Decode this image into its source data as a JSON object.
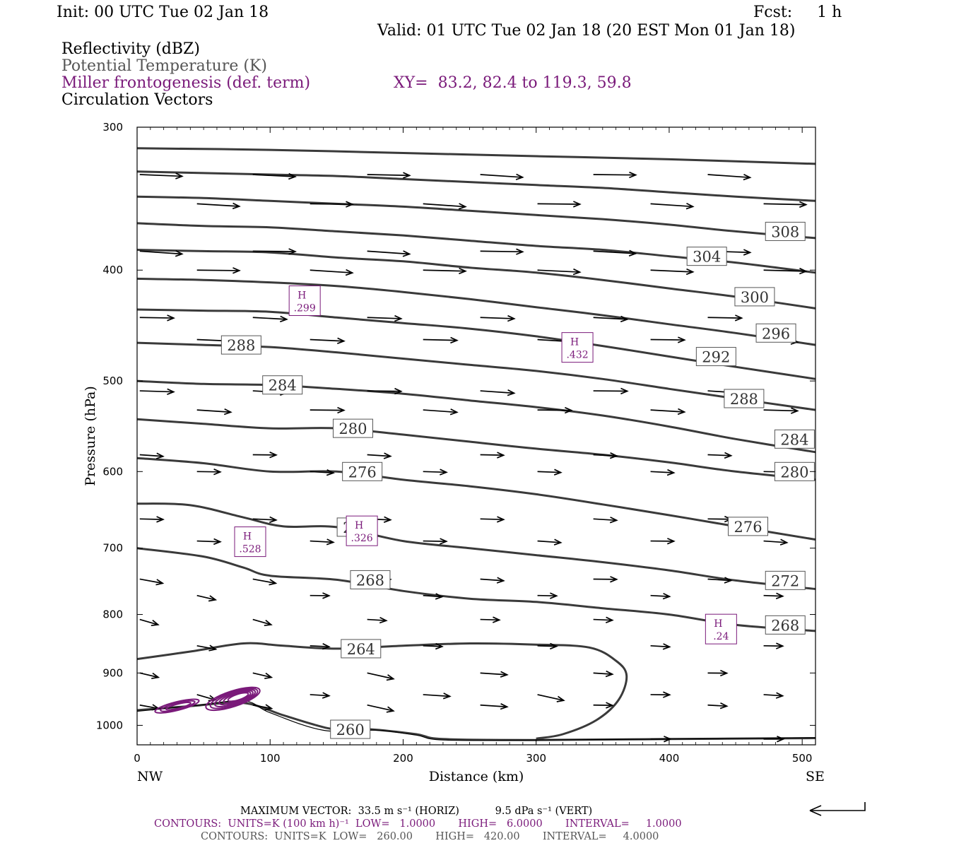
{
  "header": {
    "init": "Init: 00 UTC Tue 02 Jan 18",
    "fcst": "Fcst:     1 h",
    "valid": "Valid: 01 UTC Tue 02 Jan 18 (20 EST Mon 01 Jan 18)",
    "field1": "Reflectivity (dBZ)",
    "field2": "Potential Temperature (K)",
    "field3": "Miller frontogenesis (def. term)",
    "xy": "XY=  83.2, 82.4 to 119.3, 59.8",
    "field4": "Circulation Vectors"
  },
  "footer": {
    "line1": "MAXIMUM VECTOR:  33.5 m s⁻¹ (HORIZ)           9.5 dPa s⁻¹ (VERT)",
    "line2": "CONTOURS:  UNITS=K (100 km h)⁻¹  LOW=   1.0000       HIGH=   6.0000       INTERVAL=     1.0000",
    "line3": "CONTOURS:  UNITS=K  LOW=   260.00       HIGH=   420.00       INTERVAL=     4.0000"
  },
  "colors": {
    "theta": "#3a3a3a",
    "frontogenesis": "#7a1a7a",
    "vectors": "#000000"
  },
  "chart_data": {
    "type": "line",
    "title": "",
    "xlabel": "Distance (km)",
    "ylabel": "Pressure (hPa)",
    "xlim": [
      0,
      510
    ],
    "ylim": [
      1040,
      300
    ],
    "y_scale": "log-pressure (inverted)",
    "x_ticks": [
      0,
      100,
      200,
      300,
      400,
      500
    ],
    "y_ticks": [
      300,
      400,
      500,
      600,
      700,
      800,
      900,
      1000
    ],
    "x_end_labels": {
      "left": "NW",
      "right": "SE"
    },
    "grid": false,
    "isotherms": [
      {
        "theta": 260,
        "label": "260",
        "points": [
          [
            0,
            970
          ],
          [
            40,
            962
          ],
          [
            80,
            956
          ],
          [
            110,
            980
          ],
          [
            135,
            1000
          ],
          [
            150,
            1008
          ],
          [
            175,
            1008
          ],
          [
            210,
            1018
          ],
          [
            230,
            1028
          ],
          [
            300,
            1030
          ],
          [
            400,
            1028
          ],
          [
            510,
            1026
          ]
        ],
        "labels_at": [
          [
            147,
            1008
          ]
        ]
      },
      {
        "theta": 264,
        "label": "264",
        "points": [
          [
            0,
            875
          ],
          [
            40,
            862
          ],
          [
            80,
            848
          ],
          [
            110,
            852
          ],
          [
            150,
            857
          ],
          [
            200,
            852
          ],
          [
            250,
            848
          ],
          [
            300,
            850
          ],
          [
            340,
            855
          ],
          [
            360,
            878
          ],
          [
            368,
            905
          ],
          [
            362,
            950
          ],
          [
            345,
            990
          ],
          [
            320,
            1018
          ],
          [
            300,
            1027
          ]
        ],
        "labels_at": [
          [
            155,
            857
          ]
        ]
      },
      {
        "theta": 268,
        "label": "268",
        "points": [
          [
            0,
            700
          ],
          [
            50,
            712
          ],
          [
            80,
            728
          ],
          [
            100,
            740
          ],
          [
            150,
            746
          ],
          [
            200,
            763
          ],
          [
            250,
            775
          ],
          [
            300,
            780
          ],
          [
            350,
            790
          ],
          [
            400,
            800
          ],
          [
            450,
            817
          ],
          [
            510,
            827
          ]
        ],
        "labels_at": [
          [
            162,
            746
          ],
          [
            474,
            817
          ]
        ]
      },
      {
        "theta": 272,
        "label": "272",
        "points": [
          [
            0,
            640
          ],
          [
            40,
            642
          ],
          [
            80,
            658
          ],
          [
            110,
            670
          ],
          [
            150,
            671
          ],
          [
            200,
            690
          ],
          [
            250,
            700
          ],
          [
            300,
            710
          ],
          [
            350,
            720
          ],
          [
            400,
            732
          ],
          [
            450,
            747
          ],
          [
            510,
            760
          ]
        ],
        "labels_at": [
          [
            152,
            671
          ],
          [
            474,
            747
          ]
        ]
      },
      {
        "theta": 276,
        "label": "276",
        "points": [
          [
            0,
            584
          ],
          [
            50,
            590
          ],
          [
            100,
            600
          ],
          [
            150,
            600
          ],
          [
            200,
            610
          ],
          [
            250,
            618
          ],
          [
            300,
            628
          ],
          [
            350,
            641
          ],
          [
            400,
            655
          ],
          [
            450,
            670
          ],
          [
            510,
            688
          ]
        ],
        "labels_at": [
          [
            156,
            600
          ],
          [
            446,
            670
          ]
        ]
      },
      {
        "theta": 280,
        "label": "280",
        "points": [
          [
            0,
            540
          ],
          [
            50,
            545
          ],
          [
            100,
            550
          ],
          [
            150,
            550
          ],
          [
            200,
            557
          ],
          [
            250,
            565
          ],
          [
            300,
            573
          ],
          [
            350,
            580
          ],
          [
            400,
            589
          ],
          [
            450,
            600
          ],
          [
            510,
            610
          ]
        ],
        "labels_at": [
          [
            149,
            550
          ],
          [
            481,
            600
          ]
        ]
      },
      {
        "theta": 284,
        "label": "284",
        "points": [
          [
            0,
            500
          ],
          [
            50,
            503
          ],
          [
            100,
            504
          ],
          [
            150,
            508
          ],
          [
            200,
            513
          ],
          [
            250,
            520
          ],
          [
            300,
            527
          ],
          [
            350,
            536
          ],
          [
            400,
            548
          ],
          [
            450,
            562
          ],
          [
            510,
            577
          ]
        ],
        "labels_at": [
          [
            96,
            504
          ],
          [
            481,
            562
          ]
        ]
      },
      {
        "theta": 288,
        "label": "288",
        "points": [
          [
            0,
            463
          ],
          [
            50,
            465
          ],
          [
            100,
            467
          ],
          [
            150,
            472
          ],
          [
            200,
            478
          ],
          [
            250,
            484
          ],
          [
            300,
            490
          ],
          [
            350,
            498
          ],
          [
            400,
            508
          ],
          [
            450,
            518
          ],
          [
            510,
            530
          ]
        ],
        "labels_at": [
          [
            65,
            465
          ],
          [
            443,
            518
          ]
        ]
      },
      {
        "theta": 292,
        "label": "292",
        "points": [
          [
            0,
            433
          ],
          [
            50,
            434
          ],
          [
            100,
            435
          ],
          [
            150,
            440
          ],
          [
            200,
            445
          ],
          [
            250,
            450
          ],
          [
            300,
            457
          ],
          [
            350,
            466
          ],
          [
            400,
            476
          ],
          [
            450,
            486
          ],
          [
            510,
            498
          ]
        ],
        "labels_at": [
          [
            422,
            476
          ]
        ]
      },
      {
        "theta": 296,
        "label": "296",
        "points": [
          [
            0,
            407
          ],
          [
            50,
            408
          ],
          [
            100,
            410
          ],
          [
            150,
            413
          ],
          [
            200,
            418
          ],
          [
            250,
            424
          ],
          [
            300,
            431
          ],
          [
            350,
            438
          ],
          [
            400,
            446
          ],
          [
            450,
            454
          ],
          [
            510,
            465
          ]
        ],
        "labels_at": [
          [
            467,
            454
          ]
        ]
      },
      {
        "theta": 300,
        "label": "300",
        "points": [
          [
            0,
            384
          ],
          [
            50,
            385
          ],
          [
            100,
            386
          ],
          [
            150,
            390
          ],
          [
            200,
            393
          ],
          [
            250,
            398
          ],
          [
            300,
            402
          ],
          [
            350,
            408
          ],
          [
            400,
            415
          ],
          [
            450,
            422
          ],
          [
            510,
            432
          ]
        ],
        "labels_at": [
          [
            451,
            422
          ]
        ]
      },
      {
        "theta": 304,
        "label": "304",
        "points": [
          [
            0,
            364
          ],
          [
            50,
            366
          ],
          [
            100,
            367
          ],
          [
            150,
            370
          ],
          [
            200,
            373
          ],
          [
            250,
            377
          ],
          [
            300,
            381
          ],
          [
            350,
            384
          ],
          [
            400,
            389
          ],
          [
            450,
            394
          ],
          [
            510,
            402
          ]
        ],
        "labels_at": [
          [
            415,
            389
          ]
        ]
      },
      {
        "theta": 308,
        "label": "308",
        "points": [
          [
            0,
            345
          ],
          [
            50,
            346
          ],
          [
            100,
            348
          ],
          [
            150,
            350
          ],
          [
            200,
            352
          ],
          [
            250,
            355
          ],
          [
            300,
            358
          ],
          [
            350,
            361
          ],
          [
            400,
            365
          ],
          [
            450,
            370
          ],
          [
            510,
            375
          ]
        ],
        "labels_at": [
          [
            474,
            370
          ]
        ]
      },
      {
        "theta": 312,
        "label": "",
        "points": [
          [
            0,
            328
          ],
          [
            50,
            329
          ],
          [
            100,
            330
          ],
          [
            150,
            331
          ],
          [
            200,
            333
          ],
          [
            250,
            335
          ],
          [
            300,
            337
          ],
          [
            350,
            339
          ],
          [
            400,
            342
          ],
          [
            450,
            345
          ],
          [
            510,
            348
          ]
        ],
        "labels_at": []
      },
      {
        "theta": 316,
        "label": "",
        "points": [
          [
            0,
            313
          ],
          [
            100,
            314
          ],
          [
            200,
            316
          ],
          [
            300,
            318
          ],
          [
            400,
            320
          ],
          [
            510,
            323
          ]
        ],
        "labels_at": []
      }
    ],
    "frontogenesis_maxima": [
      {
        "label": "H",
        "value": ".299",
        "x": 126,
        "p": 426
      },
      {
        "label": "H",
        "value": ".432",
        "x": 331,
        "p": 468
      },
      {
        "label": "H",
        "value": ".528",
        "x": 85,
        "p": 692
      },
      {
        "label": "H",
        "value": ".326",
        "x": 169,
        "p": 677
      },
      {
        "label": "H",
        "value": ".24",
        "x": 439,
        "p": 825
      }
    ]
  }
}
